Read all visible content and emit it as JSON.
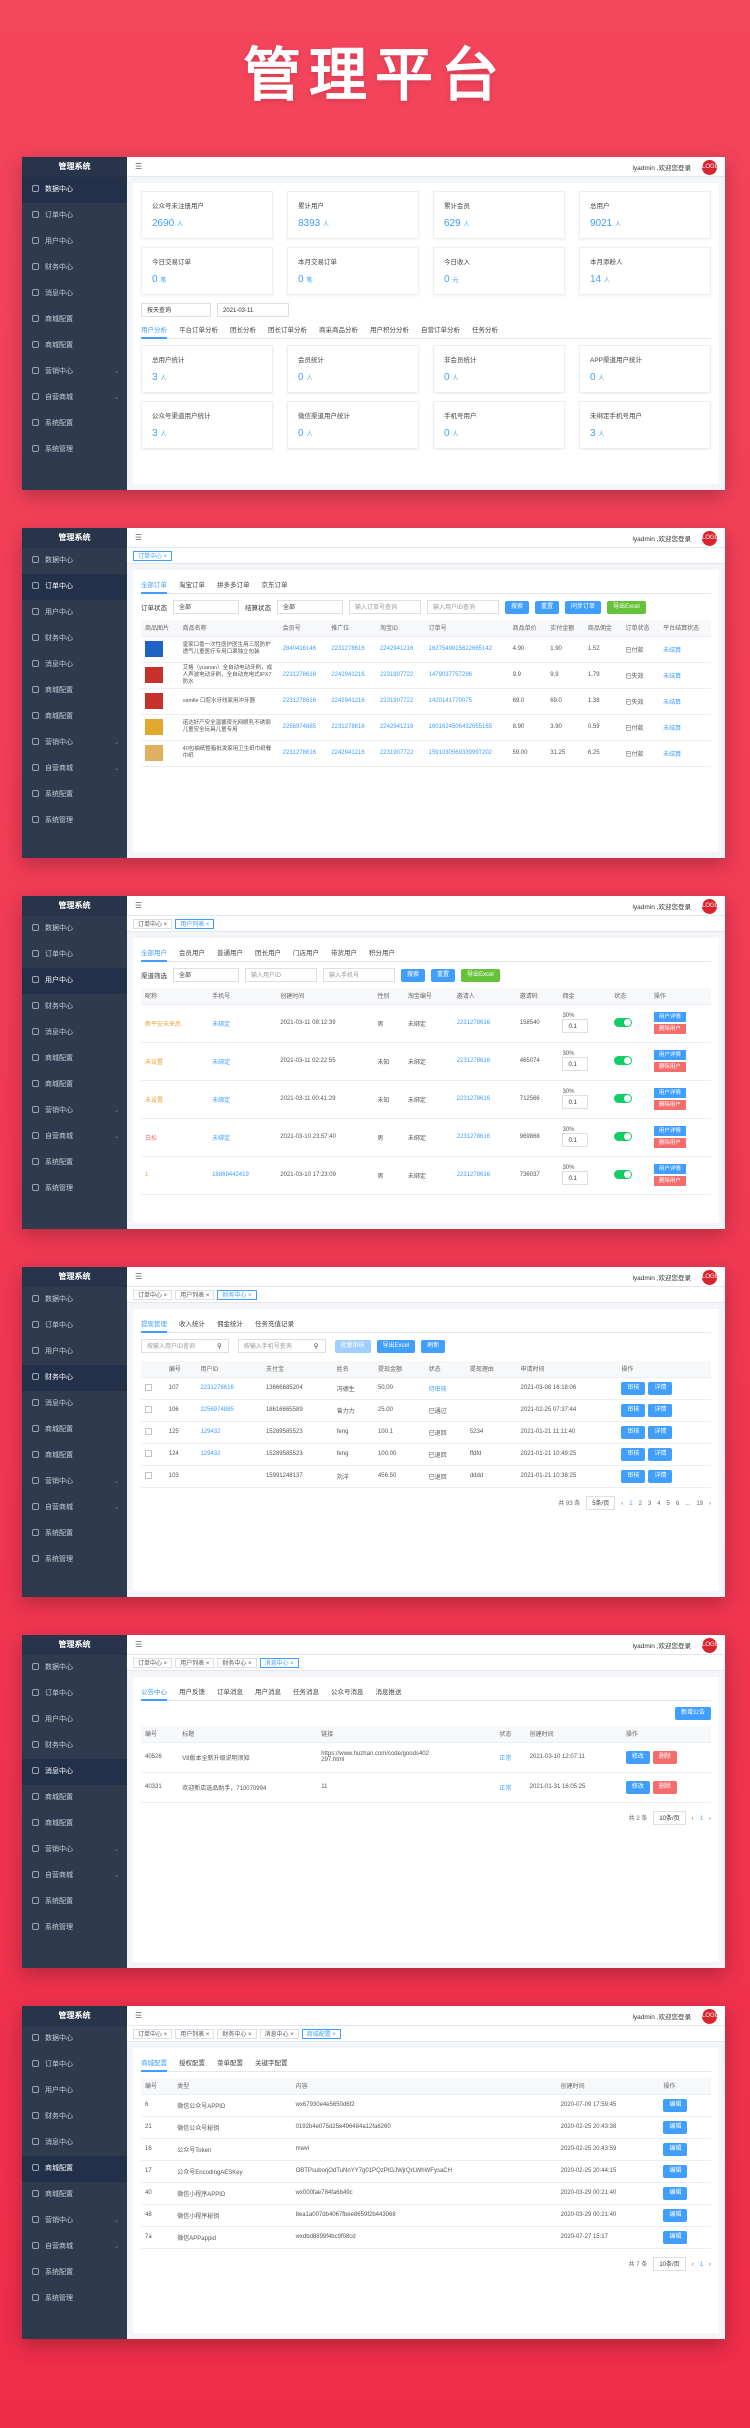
{
  "title": "管理平台",
  "sidebar": {
    "brand": "管理系统",
    "items": [
      "数据中心",
      "订单中心",
      "用户中心",
      "财务中心",
      "消息中心",
      "商城配置",
      "商城配置",
      "营销中心",
      "自营商城",
      "系统配置",
      "系统管理"
    ]
  },
  "topbar": {
    "user": "lyadmin ,欢迎您登录",
    "avatar": "LOGO"
  },
  "p1": {
    "cards1": [
      {
        "l": "公众号未注册用户",
        "v": "2690",
        "u": "人"
      },
      {
        "l": "累计用户",
        "v": "8393",
        "u": "人"
      },
      {
        "l": "累计会员",
        "v": "629",
        "u": "人"
      },
      {
        "l": "总用户",
        "v": "9021",
        "u": "人"
      }
    ],
    "cards2": [
      {
        "l": "今日交易订单",
        "v": "0",
        "u": "笔"
      },
      {
        "l": "本月交易订单",
        "v": "0",
        "u": "笔"
      },
      {
        "l": "今日收入",
        "v": "0",
        "u": "元"
      },
      {
        "l": "本月添粉人",
        "v": "14",
        "u": "人"
      }
    ],
    "filter": "按天查询",
    "date": "2021-03-11",
    "tabs": [
      "用户分析",
      "平台订单分析",
      "团长分析",
      "团长订单分析",
      "商采商品分析",
      "用户积分分析",
      "自营订单分析",
      "任务分析"
    ],
    "cards3": [
      {
        "l": "总用户统计",
        "v": "3",
        "u": "人"
      },
      {
        "l": "会员统计",
        "v": "0",
        "u": "人"
      },
      {
        "l": "非会员统计",
        "v": "0",
        "u": "人"
      },
      {
        "l": "APP渠道用户统计",
        "v": "0",
        "u": "人"
      }
    ],
    "cards4": [
      {
        "l": "公众号渠道用户统计",
        "v": "3",
        "u": "人"
      },
      {
        "l": "微信渠道用户统计",
        "v": "0",
        "u": "人"
      },
      {
        "l": "手机号用户",
        "v": "0",
        "u": "人"
      },
      {
        "l": "未绑定手机号用户",
        "v": "3",
        "u": "人"
      }
    ]
  },
  "p2": {
    "tags": [
      "订单中心"
    ],
    "tabs": [
      "全部订单",
      "淘宝订单",
      "拼多多订单",
      "京东订单"
    ],
    "f1": "订单状态",
    "f1v": "全部",
    "f2": "结算状态",
    "f2v": "全部",
    "f3": "输入订单号查询",
    "f4": "输入用户ID查询",
    "btns": [
      "搜索",
      "重置",
      "同步订单",
      "导出Excel"
    ],
    "cols": [
      "商品图片",
      "商品名称",
      "会员号",
      "推广位",
      "淘宝ID",
      "订单号",
      "商品单价",
      "实付金额",
      "商品佣金",
      "订单状态",
      "平台结算状态"
    ],
    "rows": [
      [
        "",
        "皇家口香一次性医护医生用三层防护透气儿童医疗专用口罩独立包装",
        "2840416146",
        "2231278616",
        "2242941216",
        "1627549815622665142",
        "4.90",
        "1.90",
        "1.52",
        "已付款",
        "未结算"
      ],
      [
        "",
        "艾格（yuanan）全自动电动牙刷，成人声波电动牙刷，全自动充电式IPX7防水",
        "2231278616",
        "2242941216",
        "2231907722",
        "1479037757296",
        "9.9",
        "9.9",
        "1.79",
        "已失效",
        "未结算"
      ],
      [
        "",
        "vamlle 口腔水牙线家用冲牙器",
        "2231278616",
        "2242941216",
        "2231907722",
        "1420141770075",
        "69.0",
        "69.0",
        "1.38",
        "已失效",
        "未结算"
      ],
      [
        "",
        "诺达好产安全温馨夜光网眼乳不锈钢儿童安全玩具儿童专用",
        "2256974885",
        "2231278616",
        "2242941216",
        "1601624506432055165",
        "8.90",
        "3.90",
        "0.59",
        "已付款",
        "未结算"
      ],
      [
        "",
        "40包抽纸整箱批发家用卫生纸巾纸餐巾纸",
        "2231278616",
        "2242941216",
        "2231907722",
        "1591030569339997202",
        "59.00",
        "31.25",
        "6.25",
        "已付款",
        "未结算"
      ]
    ]
  },
  "p3": {
    "tags": [
      "订单中心",
      "用户列表"
    ],
    "tabs": [
      "全部用户",
      "会员用户",
      "普通用户",
      "团长用户",
      "门店用户",
      "带货用户",
      "积分用户"
    ],
    "f1": "渠道筛选",
    "f1v": "全部",
    "f2": "输入用户ID",
    "f3": "输入手机号",
    "btns": [
      "搜索",
      "重置",
      "导出Excel"
    ],
    "cols": [
      "昵称",
      "手机号",
      "创建时间",
      "性别",
      "淘宝编号",
      "邀请人",
      "邀请码",
      "佣金",
      "状态",
      "操作"
    ],
    "rows": [
      [
        "新平安未来后",
        "未绑定",
        "2021-03-11 08:12:39",
        "男",
        "未绑定",
        "2231278616",
        "158540",
        "30%",
        "0.1"
      ],
      [
        "未设置",
        "未绑定",
        "2021-03-11 02:22:55",
        "未知",
        "未绑定",
        "2231278616",
        "465074",
        "30%",
        "0.1"
      ],
      [
        "未设置",
        "未绑定",
        "2021-03-11 00:41:29",
        "未知",
        "未绑定",
        "2231278616",
        "712566",
        "30%",
        "0.1"
      ],
      [
        "白松",
        "未绑定",
        "2021-03-10 23:57:40",
        "男",
        "未绑定",
        "2231278616",
        "969868",
        "30%",
        "0.1"
      ],
      [
        "1",
        "18868442419",
        "2021-03-10 17:23:09",
        "男",
        "未绑定",
        "2231278616",
        "736037",
        "30%",
        "0.1"
      ]
    ],
    "op1": "用户详情",
    "op2": "删除用户"
  },
  "p4": {
    "tags": [
      "订单中心",
      "用户列表",
      "财务中心"
    ],
    "tabs": [
      "提现管理",
      "收入统计",
      "佣金统计",
      "任务充值记录"
    ],
    "s1": "按输入用户ID查询",
    "s2": "按输入手机号查询",
    "btns": [
      "批量审核",
      "导出Excel",
      "刷新"
    ],
    "cols": [
      "",
      "编号",
      "用户ID",
      "支付宝",
      "姓名",
      "提现金额",
      "状态",
      "提现理由",
      "申请时间",
      "操作"
    ],
    "rows": [
      [
        "",
        "107",
        "2231278616",
        "13666685204",
        "冯德生",
        "50.00",
        "待审核",
        "",
        "2021-03-08 16:18:06"
      ],
      [
        "",
        "106",
        "2256974885",
        "18616665589",
        "曾力力",
        "25.00",
        "已通过",
        "",
        "2021-02-25 07:37:44"
      ],
      [
        "",
        "125",
        "129432",
        "15289585523",
        "feng",
        "100.1",
        "已退回",
        "5234",
        "2021-01-21 11:11:40"
      ],
      [
        "",
        "124",
        "129432",
        "15289585523",
        "feng",
        "100.00",
        "已退回",
        "ffdfd",
        "2021-01-21 10:49:25"
      ],
      [
        "",
        "103",
        "",
        "15991248137",
        "刘洋",
        "456.50",
        "已退回",
        "dddd",
        "2021-01-21 10:38:25"
      ]
    ],
    "op1": "审核",
    "op2": "详情",
    "pg": {
      "total": "共 93 条",
      "size": "5条/页",
      "pages": [
        "1",
        "2",
        "3",
        "4",
        "5",
        "6",
        "...",
        "19"
      ]
    }
  },
  "p5": {
    "tags": [
      "订单中心",
      "用户列表",
      "财务中心",
      "消息中心"
    ],
    "tabs": [
      "公告中心",
      "用户反馈",
      "订单消息",
      "用户消息",
      "任务消息",
      "公众号消息",
      "消息推送"
    ],
    "add": "新增公告",
    "cols": [
      "编号",
      "标题",
      "链接",
      "状态",
      "创建时间",
      "操作"
    ],
    "rows": [
      [
        "40526",
        "V8版本全新升级说明须知",
        "https://www.huzhan.com/code/goods402297.html",
        "正常",
        "2021-03-10 12:07:11"
      ],
      [
        "40331",
        "欢迎新店选品助手，710070994",
        "11",
        "正常",
        "2021-01-31 16:05:25"
      ]
    ],
    "op1": "修改",
    "op2": "删除",
    "pg": {
      "total": "共 2 条",
      "size": "10条/页",
      "pages": [
        "1"
      ]
    }
  },
  "p6": {
    "tags": [
      "订单中心",
      "用户列表",
      "财务中心",
      "消息中心",
      "商城配置"
    ],
    "tabs": [
      "商城配置",
      "授权配置",
      "菜单配置",
      "关键字配置"
    ],
    "cols": [
      "编号",
      "类型",
      "内容",
      "创建时间",
      "操作"
    ],
    "rows": [
      [
        "6",
        "微信公众号APPID",
        "wx67930e4e5650d6f2",
        "2020-07-09 17:59:45"
      ],
      [
        "21",
        "微信公众号秘钥",
        "0192b4e075d25e496484a12fa6260",
        "2020-02-25 20:43:38"
      ],
      [
        "16",
        "公众号Token",
        "mwvi",
        "2020-02-25 20:43:59"
      ],
      [
        "17",
        "公众号EncodingAESKey",
        "OBTPsuborjOdTuNnYY7g01PQzPIGJWjrQrLWhWFysaCH",
        "2020-02-25 20:44:15"
      ],
      [
        "40",
        "微信小程序APPID",
        "wx000fae784fa6b49c",
        "2020-03-29 00:21:40"
      ],
      [
        "48",
        "微信小程序秘钥",
        "8ea1a007db4067fbee8659f2b443068",
        "2020-03-29 00:21:40"
      ],
      [
        "7a",
        "微信APPappid",
        "wxdbd8899f4bc9f08cd",
        "2020-07-27 15:17"
      ]
    ],
    "op1": "编辑",
    "pg": {
      "total": "共 7 条",
      "size": "10条/页",
      "pages": [
        "1"
      ]
    }
  }
}
